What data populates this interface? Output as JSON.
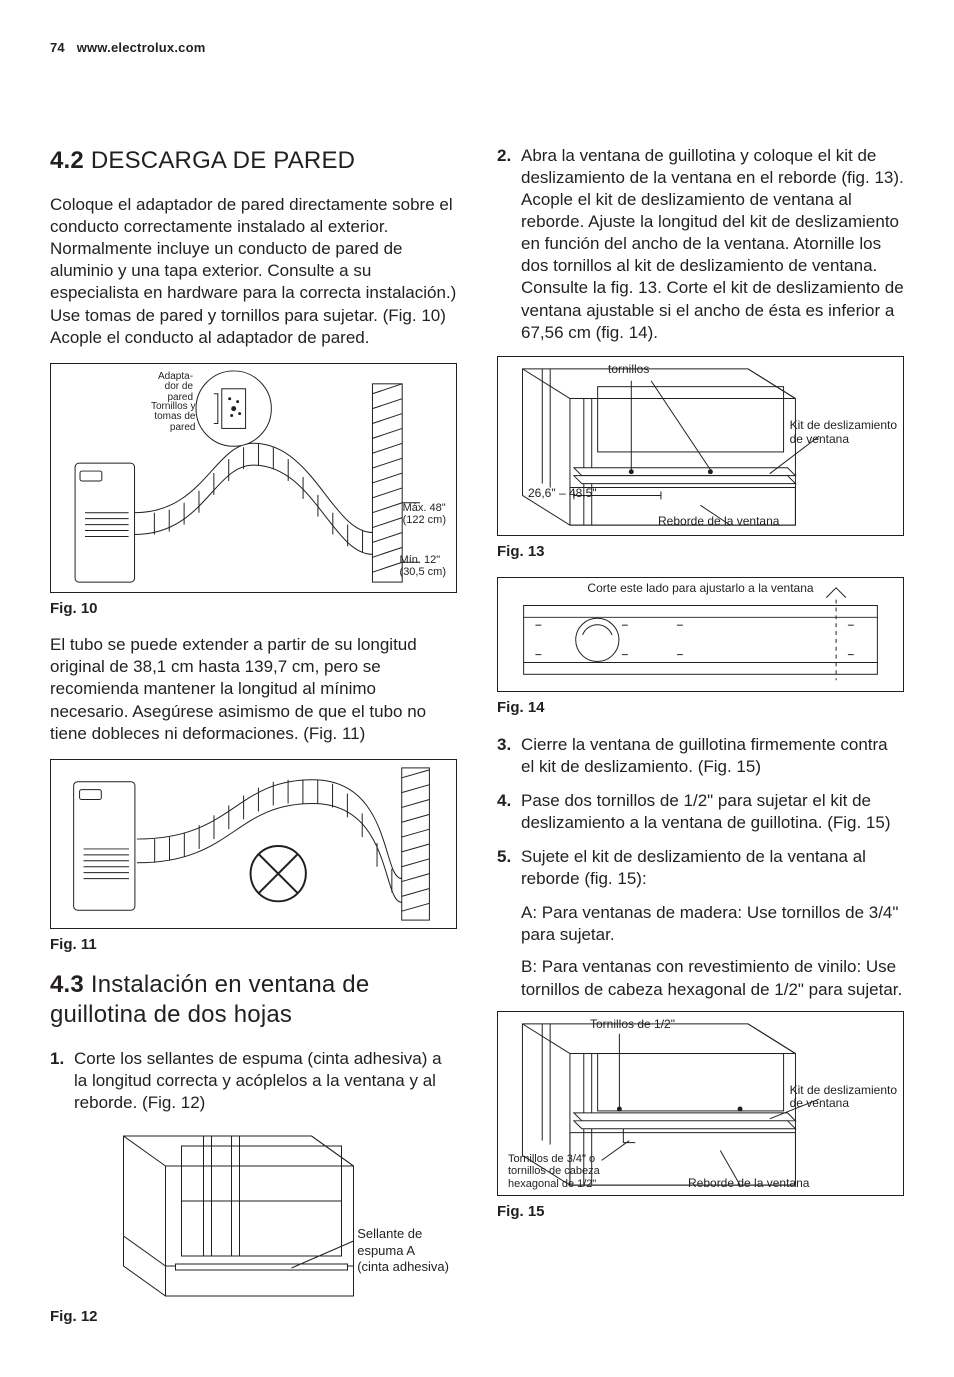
{
  "header": {
    "page_number": "74",
    "url": "www.electrolux.com"
  },
  "left": {
    "section42_num": "4.2",
    "section42_title": "DESCARGA DE PARED",
    "p1": "Coloque el adaptador de pared directamente sobre el conducto correctamente instalado al exterior. Normalmente incluye un conducto de pared de aluminio y una tapa exterior. Consulte a su especialista en hardware para la correcta instalación.) Use tomas de pared y tornillos para sujetar. (Fig. 10) Acople el conducto al adaptador de pared.",
    "fig10_cap": "Fig. 10",
    "fig10_l1": "Adapta-\ndor de\npared",
    "fig10_l2": "Tornillos y\ntomas de\npared",
    "fig10_l3": "Máx. 48\"\n(122 cm)",
    "fig10_l4": "Mín. 12\"\n(30,5 cm)",
    "p2": "El tubo se puede extender a partir de su longitud original de 38,1 cm hasta 139,7 cm, pero se recomienda mantener la longitud al mínimo necesario. Asegúrese asimismo de que el tubo no tiene dobleces ni deformaciones. (Fig. 11)",
    "fig11_cap": "Fig. 11",
    "section43_num": "4.3",
    "section43_title": "Instalación en ventana de guillotina de dos hojas",
    "step1_marker": "1.",
    "step1": "Corte los sellantes de espuma (cinta adhesiva) a la longitud correcta y acóplelos a la ventana y al reborde. (Fig. 12)",
    "fig12_cap": "Fig. 12",
    "fig12_l1": "Sellante de\nespuma A\n(cinta adhesiva)"
  },
  "right": {
    "step2_marker": "2.",
    "step2": "Abra la ventana de guillotina y coloque el kit de deslizamiento de la ventana en el reborde (fig. 13). Acople el kit de deslizamiento de ventana al reborde. Ajuste la longitud del kit de deslizamiento en función del ancho de la ventana. Atornille los dos tornillos al kit de deslizamiento de ventana. Consulte la fig. 13. Corte el kit de deslizamiento de ventana ajustable si el ancho de ésta es inferior a 67,56 cm (fig. 14).",
    "fig13_cap": "Fig. 13",
    "fig13_l1": "tornillos",
    "fig13_l2": "Kit de deslizamiento\nde ventana",
    "fig13_l3": "26,6\" – 48,5\"",
    "fig13_l4": "Reborde de la ventana",
    "fig14_cap": "Fig. 14",
    "fig14_l1": "Corte este lado para ajustarlo a la ventana",
    "step3_marker": "3.",
    "step3": "Cierre la ventana de guillotina firmemente contra el kit de deslizamiento. (Fig. 15)",
    "step4_marker": "4.",
    "step4": "Pase dos tornillos de 1/2\" para sujetar el kit de deslizamiento a la ventana de guillotina. (Fig. 15)",
    "step5_marker": "5.",
    "step5": "Sujete el kit de deslizamiento de la ventana al reborde (fig. 15):",
    "step5a": "A: Para ventanas de madera: Use tornillos de 3/4\" para sujetar.",
    "step5b": "B: Para ventanas con revestimiento de vinilo: Use tornillos de cabeza hexagonal de 1/2\" para sujetar.",
    "fig15_cap": "Fig. 15",
    "fig15_l1": "Tornillos de 1/2\"",
    "fig15_l2": "Kit de deslizamiento\nde ventana",
    "fig15_l3": "Tornillos de 3/4\" o\ntornillos de cabeza\nhexagonal de 1/2\"",
    "fig15_l4": "Reborde de la ventana"
  }
}
